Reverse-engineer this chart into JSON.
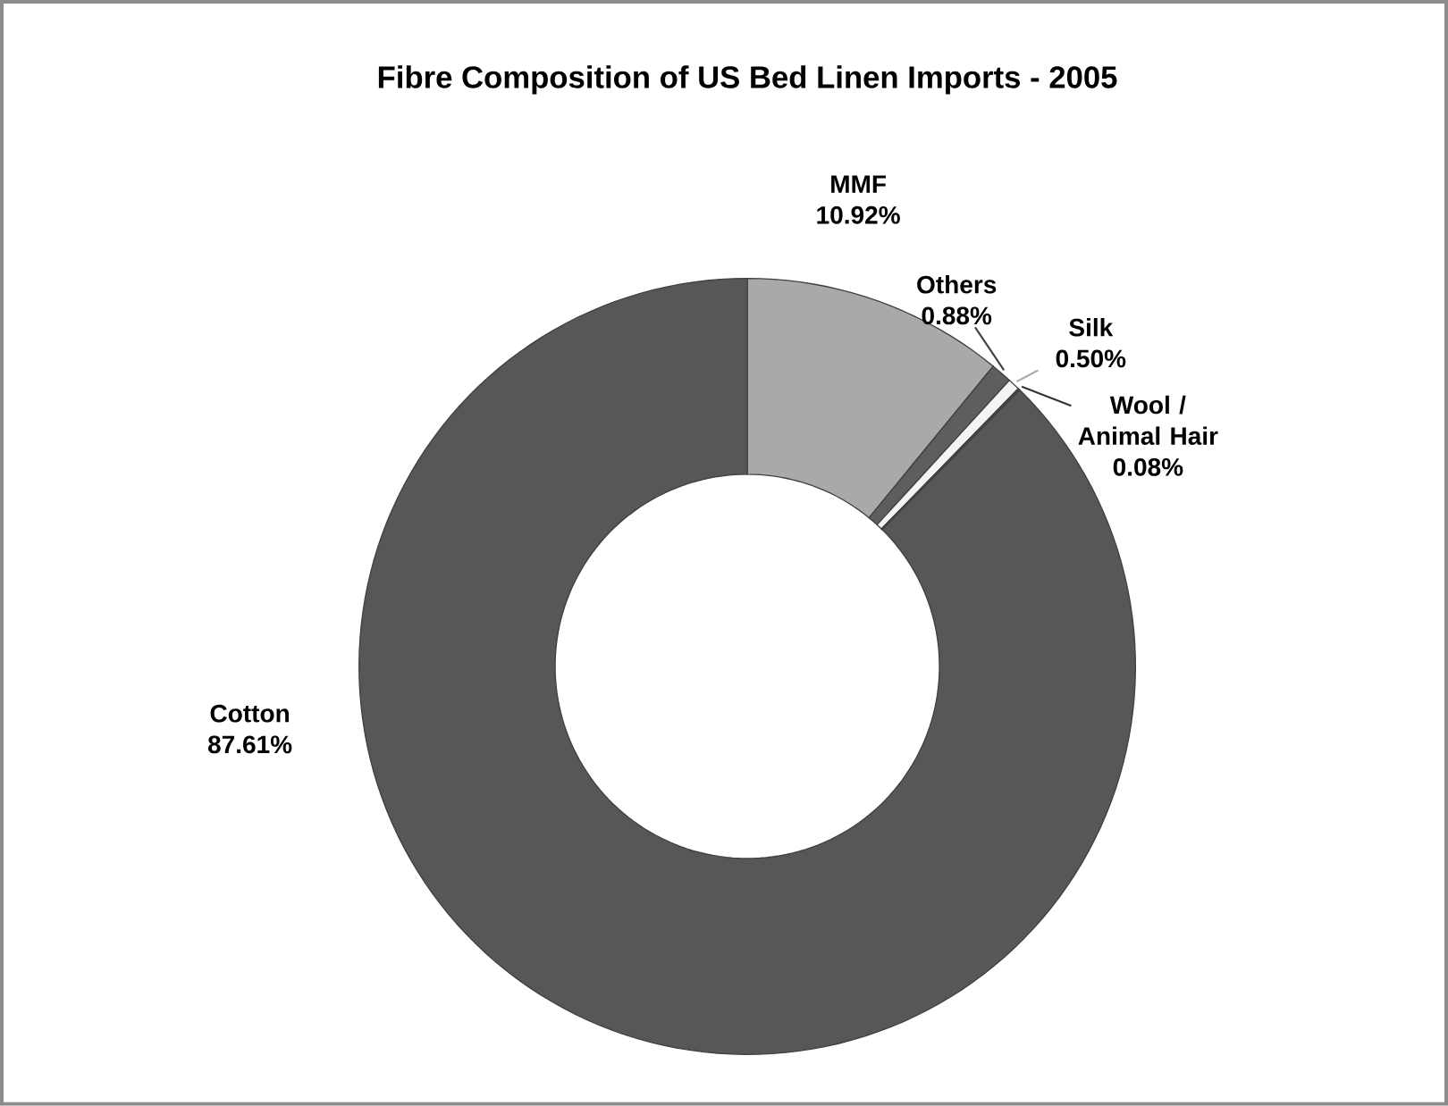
{
  "chart_data": {
    "type": "donut",
    "title": "Fibre Composition of US Bed Linen Imports - 2005",
    "categories": [
      "MMF",
      "Others",
      "Silk",
      "Wool / Animal Hair",
      "Cotton"
    ],
    "values": [
      10.92,
      0.88,
      0.5,
      0.08,
      87.61
    ],
    "value_labels": [
      "10.92%",
      "0.88%",
      "0.50%",
      "0.08%",
      "87.61%"
    ],
    "colors": [
      "#a9a9a9",
      "#5e5e5e",
      "#f4f4f4",
      "#4a4a4a",
      "#575757"
    ]
  }
}
